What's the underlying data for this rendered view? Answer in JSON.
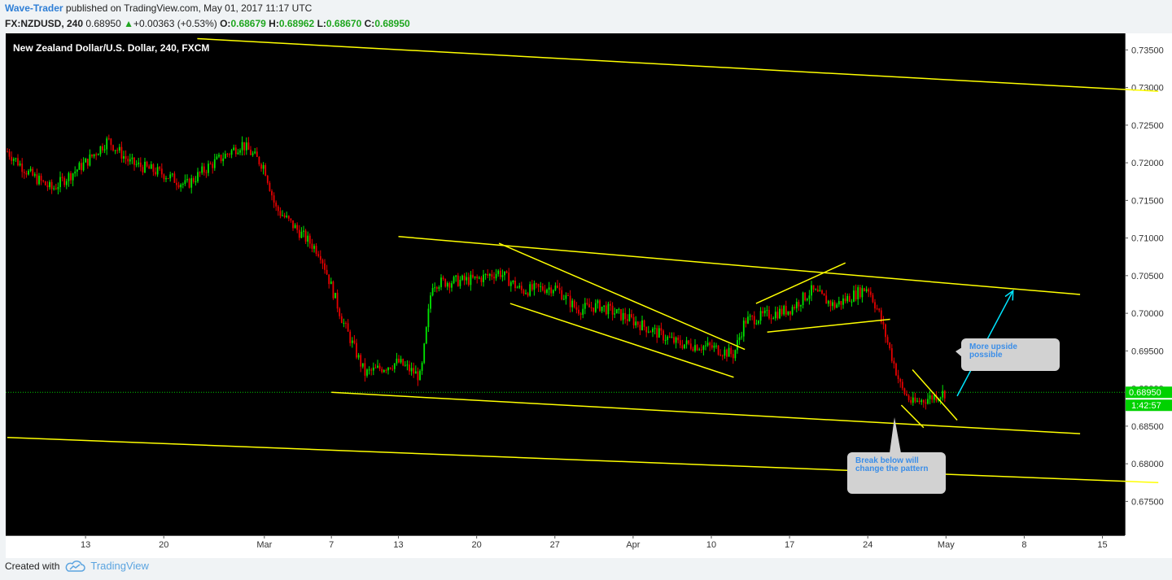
{
  "header": {
    "author": "Wave-Trader",
    "published_text": " published on TradingView.com, May 01, 2017 11:17 UTC",
    "symbol": "FX:NZDUSD, 240",
    "last": "0.68950",
    "change_arrow": "▲",
    "change": "+0.00363 (+0.53%)",
    "o_label": "O:",
    "o_value": "0.68679",
    "h_label": "H:",
    "h_value": "0.68962",
    "l_label": "L:",
    "l_value": "0.68670",
    "c_label": "C:",
    "c_value": "0.68950"
  },
  "chart_title": "New Zealand Dollar/U.S. Dollar, 240, FXCM",
  "callouts": {
    "upside": "More upside possible",
    "break": "Break below will change the pattern"
  },
  "footer": {
    "created_with": "Created with",
    "brand": "TradingView",
    "logo_icon": "tradingview-cloud-icon"
  },
  "colors": {
    "background": "#000000",
    "up": "#00e600",
    "down": "#e60000",
    "trendline": "#ffff00",
    "arrow": "#00e5ff",
    "price_line": "#00cc00"
  },
  "chart_data": {
    "type": "candlestick",
    "title": "New Zealand Dollar/U.S. Dollar, 240, FXCM",
    "xlabel": "",
    "ylabel": "",
    "ylim": [
      0.6705,
      0.7372
    ],
    "y_ticks": [
      "0.73500",
      "0.73000",
      "0.72500",
      "0.72000",
      "0.71500",
      "0.71000",
      "0.70500",
      "0.70000",
      "0.69500",
      "0.69000",
      "0.68500",
      "0.68000",
      "0.67500"
    ],
    "x_ticks": [
      "13",
      "20",
      "Mar",
      "7",
      "13",
      "20",
      "27",
      "Apr",
      "10",
      "17",
      "24",
      "May",
      "8",
      "15"
    ],
    "last_price": "0.68950",
    "countdown": "1:42:57",
    "grid": false,
    "price_path": [
      {
        "date": "2017-02-06",
        "price": 0.7215
      },
      {
        "date": "2017-02-08",
        "price": 0.7185
      },
      {
        "date": "2017-02-10",
        "price": 0.7165
      },
      {
        "date": "2017-02-13",
        "price": 0.72
      },
      {
        "date": "2017-02-15",
        "price": 0.723
      },
      {
        "date": "2017-02-17",
        "price": 0.72
      },
      {
        "date": "2017-02-20",
        "price": 0.7185
      },
      {
        "date": "2017-02-22",
        "price": 0.717
      },
      {
        "date": "2017-02-24",
        "price": 0.7195
      },
      {
        "date": "2017-02-27",
        "price": 0.7225
      },
      {
        "date": "2017-03-01",
        "price": 0.7195
      },
      {
        "date": "2017-03-02",
        "price": 0.714
      },
      {
        "date": "2017-03-06",
        "price": 0.708
      },
      {
        "date": "2017-03-08",
        "price": 0.699
      },
      {
        "date": "2017-03-10",
        "price": 0.692
      },
      {
        "date": "2017-03-13",
        "price": 0.6935
      },
      {
        "date": "2017-03-15",
        "price": 0.6915
      },
      {
        "date": "2017-03-16",
        "price": 0.704
      },
      {
        "date": "2017-03-20",
        "price": 0.7045
      },
      {
        "date": "2017-03-22",
        "price": 0.7055
      },
      {
        "date": "2017-03-24",
        "price": 0.703
      },
      {
        "date": "2017-03-27",
        "price": 0.7035
      },
      {
        "date": "2017-03-29",
        "price": 0.7005
      },
      {
        "date": "2017-03-31",
        "price": 0.701
      },
      {
        "date": "2017-04-03",
        "price": 0.699
      },
      {
        "date": "2017-04-05",
        "price": 0.6975
      },
      {
        "date": "2017-04-07",
        "price": 0.696
      },
      {
        "date": "2017-04-10",
        "price": 0.6955
      },
      {
        "date": "2017-04-12",
        "price": 0.6945
      },
      {
        "date": "2017-04-13",
        "price": 0.699
      },
      {
        "date": "2017-04-17",
        "price": 0.7005
      },
      {
        "date": "2017-04-19",
        "price": 0.703
      },
      {
        "date": "2017-04-21",
        "price": 0.701
      },
      {
        "date": "2017-04-24",
        "price": 0.7035
      },
      {
        "date": "2017-04-25",
        "price": 0.7
      },
      {
        "date": "2017-04-26",
        "price": 0.695
      },
      {
        "date": "2017-04-27",
        "price": 0.69
      },
      {
        "date": "2017-04-28",
        "price": 0.688
      },
      {
        "date": "2017-05-01",
        "price": 0.6895
      }
    ],
    "trendlines": [
      {
        "from": {
          "date": "2017-02-23",
          "price": 0.7365
        },
        "to": {
          "date": "2017-05-20",
          "price": 0.7295
        }
      },
      {
        "from": {
          "date": "2017-02-06",
          "price": 0.6835
        },
        "to": {
          "date": "2017-05-20",
          "price": 0.6775
        }
      },
      {
        "from": {
          "date": "2017-03-07",
          "price": 0.6895
        },
        "to": {
          "date": "2017-05-13",
          "price": 0.684
        }
      },
      {
        "from": {
          "date": "2017-03-13",
          "price": 0.7102
        },
        "to": {
          "date": "2017-05-13",
          "price": 0.7025
        }
      },
      {
        "from": {
          "date": "2017-03-22",
          "price": 0.7093
        },
        "to": {
          "date": "2017-04-13",
          "price": 0.6952
        }
      },
      {
        "from": {
          "date": "2017-03-23",
          "price": 0.7013
        },
        "to": {
          "date": "2017-04-12",
          "price": 0.6915
        }
      },
      {
        "from": {
          "date": "2017-04-14",
          "price": 0.7013
        },
        "to": {
          "date": "2017-04-22",
          "price": 0.7067
        }
      },
      {
        "from": {
          "date": "2017-04-15",
          "price": 0.6975
        },
        "to": {
          "date": "2017-04-26",
          "price": 0.6992
        }
      },
      {
        "from": {
          "date": "2017-04-28",
          "price": 0.6925
        },
        "to": {
          "date": "2017-05-02",
          "price": 0.6858
        }
      },
      {
        "from": {
          "date": "2017-04-27",
          "price": 0.6878
        },
        "to": {
          "date": "2017-04-29",
          "price": 0.6848
        }
      }
    ],
    "arrow": {
      "from": {
        "date": "2017-05-02",
        "price": 0.689
      },
      "to": {
        "date": "2017-05-07",
        "price": 0.703
      }
    },
    "series": [
      {
        "values": []
      }
    ]
  }
}
